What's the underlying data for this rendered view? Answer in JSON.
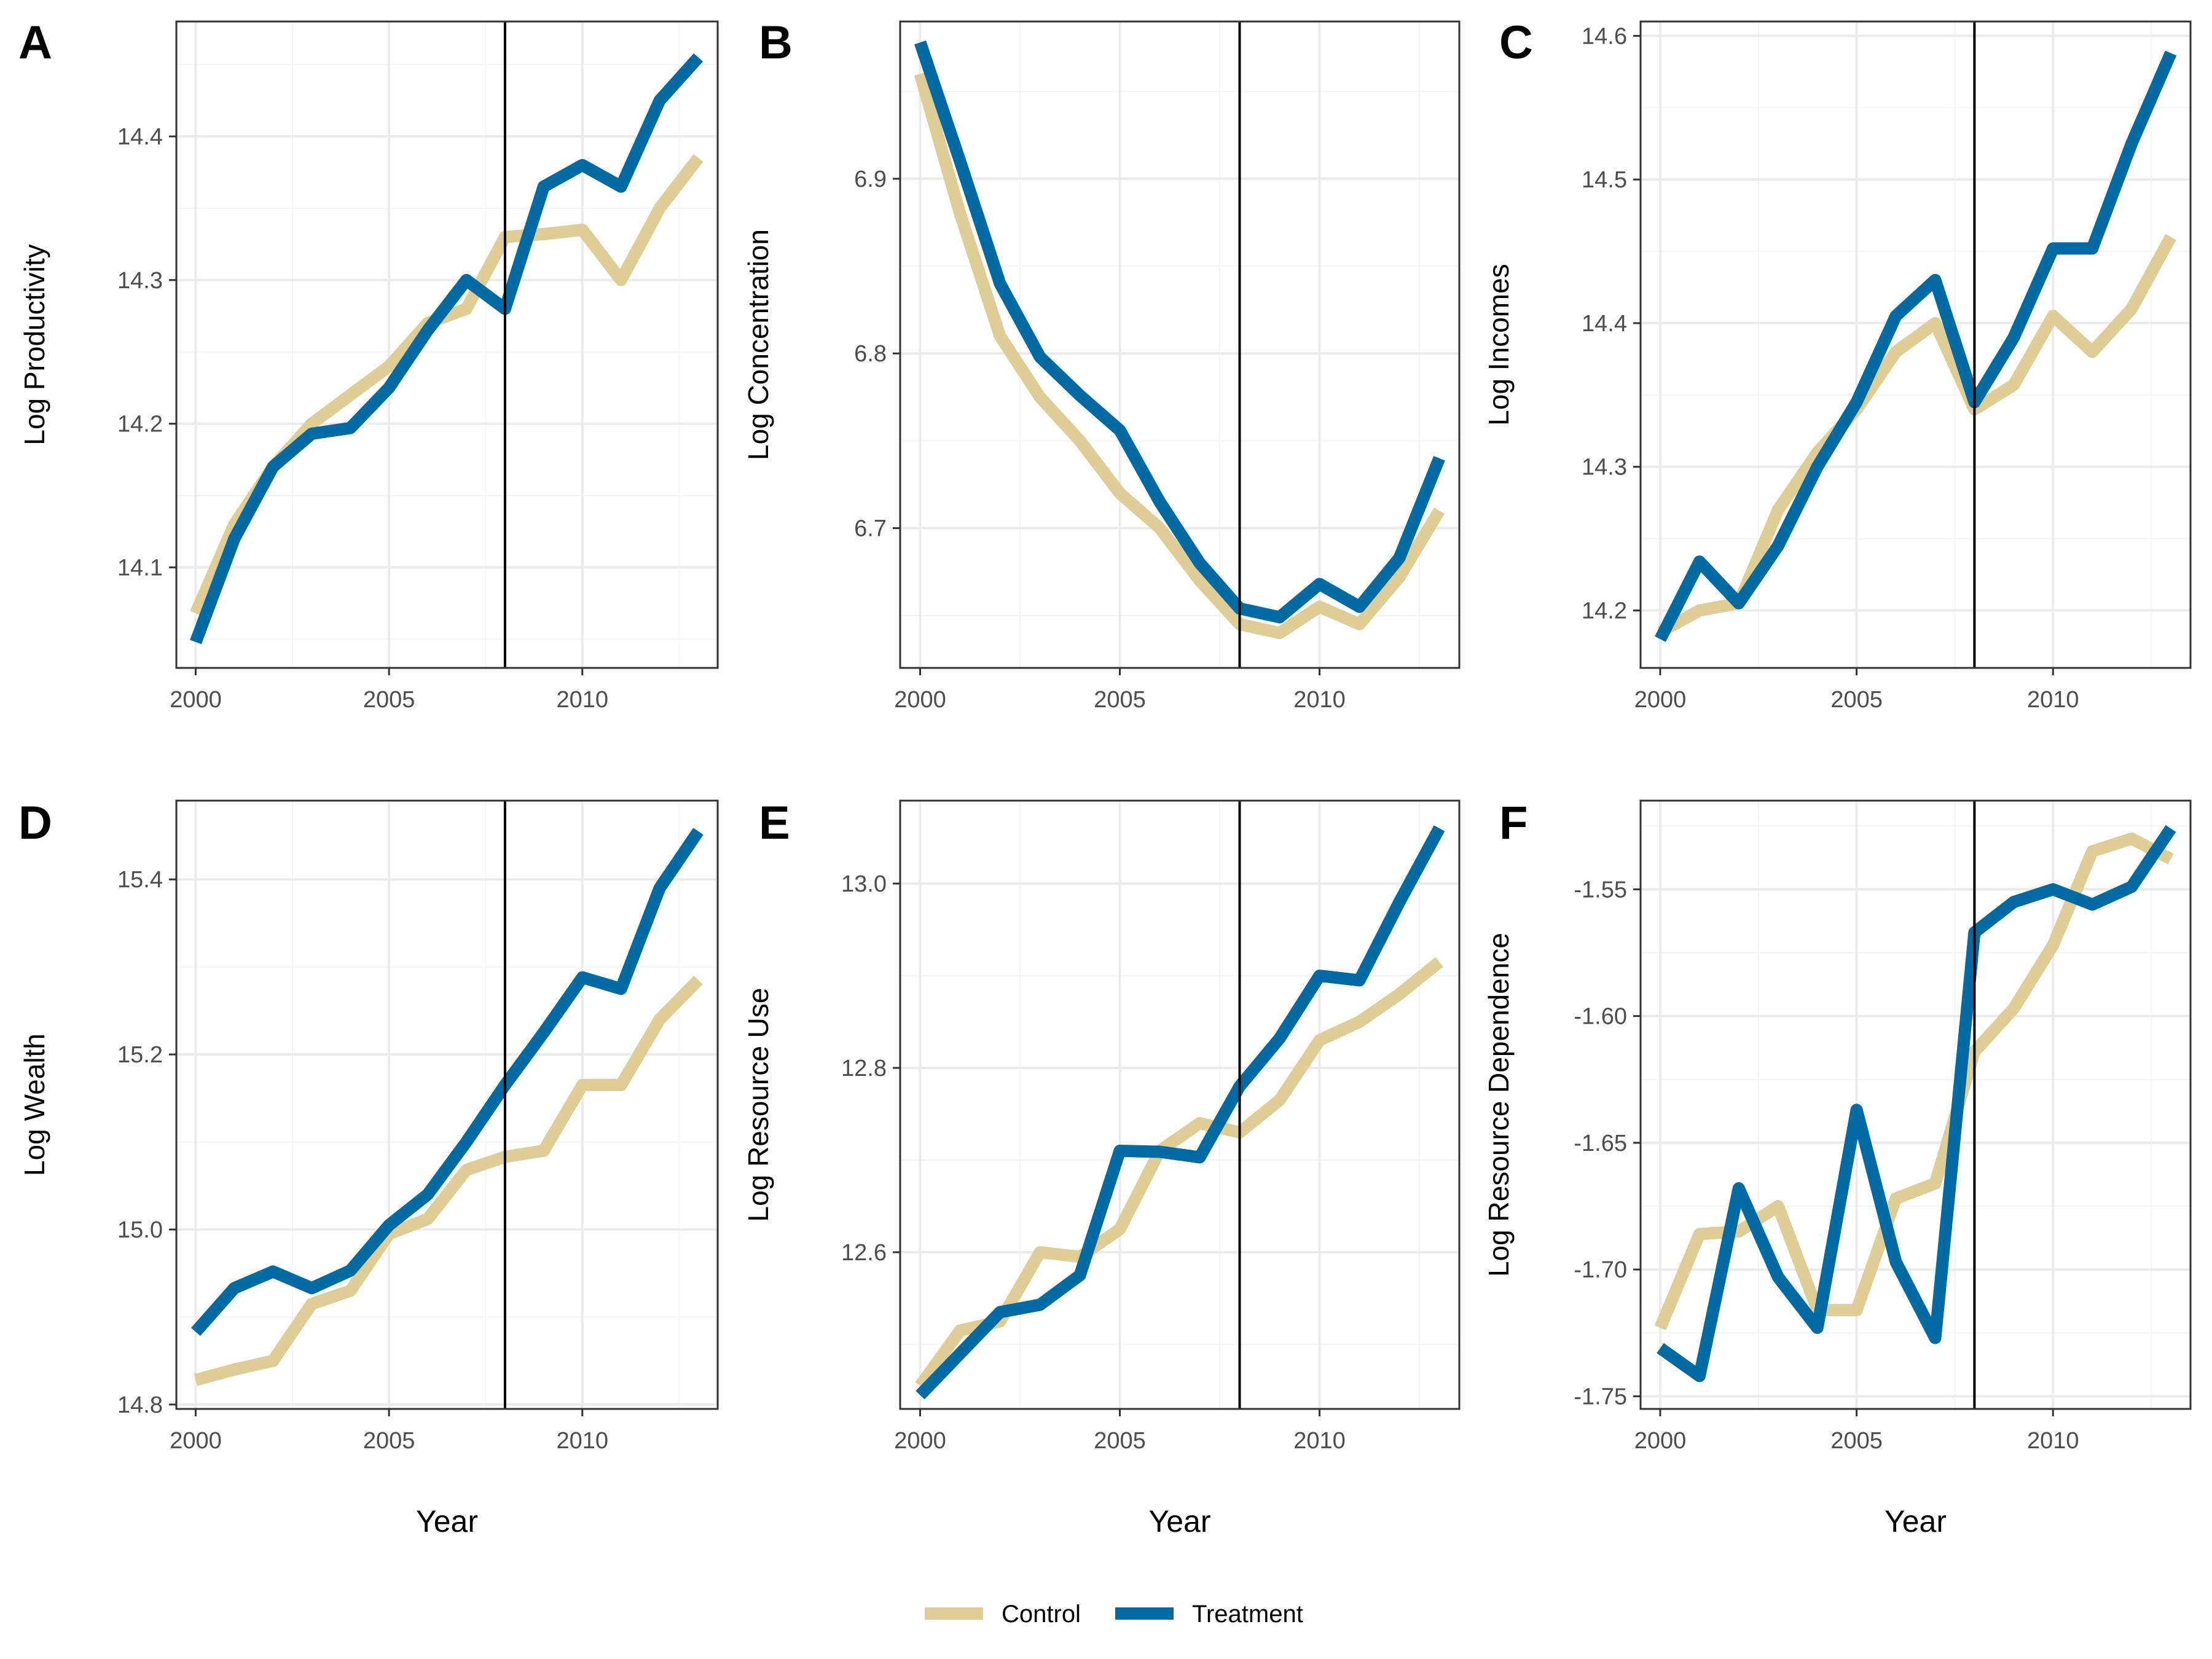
{
  "colors": {
    "control": "#dfcd96",
    "treatment": "#006ba3"
  },
  "legend": {
    "items": [
      {
        "name": "Control",
        "color": "#dfcd96"
      },
      {
        "name": "Treatment",
        "color": "#006ba3"
      }
    ]
  },
  "chart_data": [
    {
      "type": "line",
      "panel": "A",
      "xlabel": "",
      "ylabel": "Log Productivity",
      "x": [
        2000,
        2001,
        2002,
        2003,
        2004,
        2005,
        2006,
        2007,
        2008,
        2009,
        2010,
        2011,
        2012,
        2013
      ],
      "xlim": [
        1999.5,
        2013.5
      ],
      "ylim": [
        14.03,
        14.48
      ],
      "xticks": [
        "2000",
        "2005",
        "2010"
      ],
      "yticks": [
        "14.1",
        "14.2",
        "14.3",
        "14.4"
      ],
      "vline_x": 2008,
      "series": [
        {
          "name": "Control",
          "values": [
            14.068,
            14.13,
            14.17,
            14.2,
            14.22,
            14.24,
            14.27,
            14.28,
            14.33,
            14.332,
            14.335,
            14.3,
            14.35,
            14.385
          ]
        },
        {
          "name": "Treatment",
          "values": [
            14.048,
            14.12,
            14.17,
            14.193,
            14.197,
            14.225,
            14.265,
            14.3,
            14.28,
            14.365,
            14.38,
            14.365,
            14.425,
            14.455
          ]
        }
      ]
    },
    {
      "type": "line",
      "panel": "B",
      "xlabel": "",
      "ylabel": "Log Concentration",
      "x": [
        2000,
        2001,
        2002,
        2003,
        2004,
        2005,
        2006,
        2007,
        2008,
        2009,
        2010,
        2011,
        2012,
        2013
      ],
      "xlim": [
        1999.5,
        2013.5
      ],
      "ylim": [
        6.62,
        6.99
      ],
      "xticks": [
        "2000",
        "2005",
        "2010"
      ],
      "yticks": [
        "6.7",
        "6.8",
        "6.9"
      ],
      "vline_x": 2008,
      "series": [
        {
          "name": "Control",
          "values": [
            6.96,
            6.88,
            6.81,
            6.775,
            6.75,
            6.72,
            6.7,
            6.67,
            6.645,
            6.64,
            6.655,
            6.645,
            6.672,
            6.71
          ]
        },
        {
          "name": "Treatment",
          "values": [
            6.978,
            6.91,
            6.84,
            6.798,
            6.776,
            6.756,
            6.715,
            6.68,
            6.654,
            6.649,
            6.668,
            6.655,
            6.683,
            6.74
          ]
        }
      ]
    },
    {
      "type": "line",
      "panel": "C",
      "xlabel": "",
      "ylabel": "Log Incomes",
      "x": [
        2000,
        2001,
        2002,
        2003,
        2004,
        2005,
        2006,
        2007,
        2008,
        2009,
        2010,
        2011,
        2012,
        2013
      ],
      "xlim": [
        1999.5,
        2013.5
      ],
      "ylim": [
        14.16,
        14.61
      ],
      "xticks": [
        "2000",
        "2005",
        "2010"
      ],
      "yticks": [
        "14.2",
        "14.3",
        "14.4",
        "14.5",
        "14.6"
      ],
      "vline_x": 2008,
      "series": [
        {
          "name": "Control",
          "values": [
            14.185,
            14.2,
            14.205,
            14.27,
            14.31,
            14.34,
            14.38,
            14.4,
            14.34,
            14.357,
            14.405,
            14.38,
            14.41,
            14.46
          ]
        },
        {
          "name": "Treatment",
          "values": [
            14.18,
            14.234,
            14.205,
            14.245,
            14.3,
            14.345,
            14.405,
            14.43,
            14.345,
            14.39,
            14.452,
            14.452,
            14.525,
            14.588
          ]
        }
      ]
    },
    {
      "type": "line",
      "panel": "D",
      "xlabel": "Year",
      "ylabel": "Log Wealth",
      "x": [
        2000,
        2001,
        2002,
        2003,
        2004,
        2005,
        2006,
        2007,
        2008,
        2009,
        2010,
        2011,
        2012,
        2013
      ],
      "xlim": [
        1999.5,
        2013.5
      ],
      "ylim": [
        14.795,
        15.49
      ],
      "xticks": [
        "2000",
        "2005",
        "2010"
      ],
      "yticks": [
        "14.8",
        "15.0",
        "15.2",
        "15.4"
      ],
      "vline_x": 2008,
      "series": [
        {
          "name": "Control",
          "values": [
            14.828,
            14.84,
            14.85,
            14.915,
            14.93,
            14.995,
            15.012,
            15.068,
            15.083,
            15.09,
            15.165,
            15.165,
            15.24,
            15.285
          ]
        },
        {
          "name": "Treatment",
          "values": [
            14.883,
            14.933,
            14.952,
            14.933,
            14.953,
            15.005,
            15.04,
            15.1,
            15.165,
            15.225,
            15.288,
            15.275,
            15.39,
            15.455
          ]
        }
      ]
    },
    {
      "type": "line",
      "panel": "E",
      "xlabel": "Year",
      "ylabel": "Log Resource Use",
      "x": [
        2000,
        2001,
        2002,
        2003,
        2004,
        2005,
        2006,
        2007,
        2008,
        2009,
        2010,
        2011,
        2012,
        2013
      ],
      "xlim": [
        1999.5,
        2013.5
      ],
      "ylim": [
        12.43,
        13.09
      ],
      "xticks": [
        "2000",
        "2005",
        "2010"
      ],
      "yticks": [
        "12.6",
        "12.8",
        "13.0"
      ],
      "vline_x": 2008,
      "series": [
        {
          "name": "Control",
          "values": [
            12.455,
            12.515,
            12.525,
            12.6,
            12.595,
            12.625,
            12.71,
            12.74,
            12.73,
            12.765,
            12.83,
            12.85,
            12.88,
            12.915
          ]
        },
        {
          "name": "Treatment",
          "values": [
            12.445,
            12.49,
            12.535,
            12.543,
            12.575,
            12.71,
            12.709,
            12.703,
            12.78,
            12.832,
            12.9,
            12.895,
            12.98,
            13.06
          ]
        }
      ]
    },
    {
      "type": "line",
      "panel": "F",
      "xlabel": "Year",
      "ylabel": "Log Resource Dependence",
      "x": [
        2000,
        2001,
        2002,
        2003,
        2004,
        2005,
        2006,
        2007,
        2008,
        2009,
        2010,
        2011,
        2012,
        2013
      ],
      "xlim": [
        1999.5,
        2013.5
      ],
      "ylim": [
        -1.755,
        -1.515
      ],
      "xticks": [
        "2000",
        "2005",
        "2010"
      ],
      "yticks": [
        "-1.75",
        "-1.70",
        "-1.65",
        "-1.60",
        "-1.55"
      ],
      "vline_x": 2008,
      "series": [
        {
          "name": "Control",
          "values": [
            -1.723,
            -1.686,
            -1.685,
            -1.675,
            -1.716,
            -1.716,
            -1.672,
            -1.666,
            -1.614,
            -1.597,
            -1.572,
            -1.535,
            -1.53,
            -1.538
          ]
        },
        {
          "name": "Treatment",
          "values": [
            -1.731,
            -1.742,
            -1.668,
            -1.703,
            -1.723,
            -1.637,
            -1.697,
            -1.727,
            -1.567,
            -1.555,
            -1.55,
            -1.556,
            -1.549,
            -1.526
          ]
        }
      ]
    }
  ]
}
